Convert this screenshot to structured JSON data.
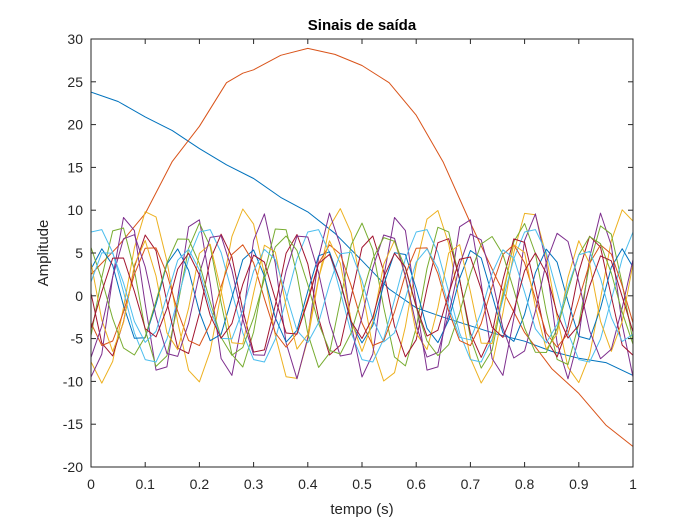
{
  "chart_data": {
    "type": "line",
    "title": "Sinais de saída",
    "xlabel": "tempo (s)",
    "ylabel": "Amplitude",
    "xlim": [
      0,
      1
    ],
    "ylim": [
      -20,
      30
    ],
    "xticks": [
      "0",
      "0.1",
      "0.2",
      "0.3",
      "0.4",
      "0.5",
      "0.6",
      "0.7",
      "0.8",
      "0.9",
      "1"
    ],
    "yticks": [
      "-20",
      "-15",
      "-10",
      "-5",
      "0",
      "5",
      "10",
      "15",
      "20",
      "25",
      "30"
    ],
    "grid": false,
    "legend": "none",
    "series": [
      {
        "color": "#0072BD",
        "x": [
          0,
          0.05,
          0.1,
          0.15,
          0.2,
          0.25,
          0.3,
          0.35,
          0.4,
          0.45,
          0.5,
          0.55,
          0.6,
          0.65,
          0.7,
          0.75,
          0.8,
          0.85,
          0.9,
          0.95,
          1
        ],
        "y": [
          23.8,
          22.7,
          20.9,
          19.3,
          17.2,
          15.3,
          13.7,
          11.5,
          9.8,
          7.3,
          4.1,
          0.8,
          -1.4,
          -2.5,
          -3.5,
          -4.5,
          -5.3,
          -6.5,
          -7.3,
          -7.8,
          -9.3
        ]
      },
      {
        "color": "#D95319",
        "x": [
          0,
          0.05,
          0.1,
          0.15,
          0.2,
          0.25,
          0.28,
          0.3,
          0.35,
          0.4,
          0.45,
          0.5,
          0.55,
          0.6,
          0.65,
          0.7,
          0.75,
          0.8,
          0.85,
          0.9,
          0.95,
          1
        ],
        "y": [
          2.5,
          5.8,
          9.6,
          15.7,
          19.8,
          24.9,
          26.0,
          26.4,
          28.1,
          28.9,
          28.2,
          26.9,
          24.9,
          21.1,
          15.6,
          8.5,
          1.8,
          -4.3,
          -8.5,
          -11.4,
          -15.1,
          -17.6
        ]
      },
      {
        "color": "#EDB120",
        "amp": 10.2,
        "freq": 5.7,
        "phase": 4.0,
        "offset": 0
      },
      {
        "color": "#7E2F8E",
        "amp": 9.7,
        "freq": 8.0,
        "phase": 4.5,
        "offset": 0
      },
      {
        "color": "#77AC30",
        "amp": 8.5,
        "freq": 6.7,
        "phase": 5.7,
        "offset": 0
      },
      {
        "color": "#4DBEEE",
        "amp": 8.0,
        "freq": 5.0,
        "phase": 1.2,
        "offset": 0
      },
      {
        "color": "#A2142F",
        "amp": 7.2,
        "freq": 7.3,
        "phase": 3.1,
        "offset": 0
      },
      {
        "color": "#0072BD",
        "amp": 5.5,
        "freq": 7.3,
        "phase": 0.6,
        "offset": 0
      },
      {
        "color": "#D95319",
        "amp": 6.0,
        "freq": 6.0,
        "phase": 3.7,
        "offset": 0
      },
      {
        "color": "#EDB120",
        "amp": 6.5,
        "freq": 8.7,
        "phase": 2.5,
        "offset": 0
      },
      {
        "color": "#7E2F8E",
        "amp": 7.5,
        "freq": 6.3,
        "phase": 5.0,
        "offset": 0
      },
      {
        "color": "#77AC30",
        "amp": 7.0,
        "freq": 5.3,
        "phase": 2.2,
        "offset": 0
      },
      {
        "color": "#4DBEEE",
        "amp": 5.5,
        "freq": 6.8,
        "phase": 0.3,
        "offset": 0
      },
      {
        "color": "#A2142F",
        "amp": 5.0,
        "freq": 7.8,
        "phase": 5.4,
        "offset": 0
      }
    ]
  }
}
